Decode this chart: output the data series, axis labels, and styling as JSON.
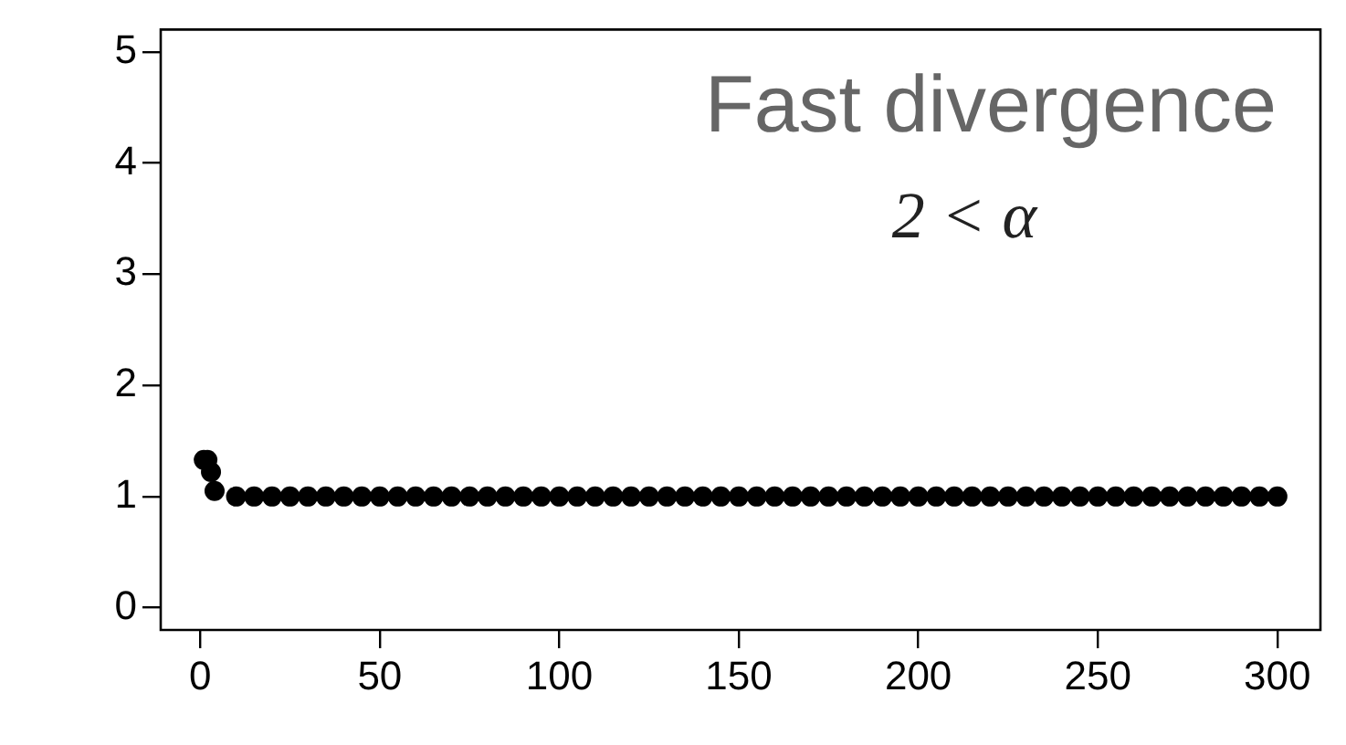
{
  "chart_data": {
    "type": "scatter",
    "title": "Fast divergence",
    "annotations": [
      "2 < α"
    ],
    "x": [
      1,
      2,
      3,
      4,
      10,
      15,
      20,
      25,
      30,
      35,
      40,
      45,
      50,
      55,
      60,
      65,
      70,
      75,
      80,
      85,
      90,
      95,
      100,
      105,
      110,
      115,
      120,
      125,
      130,
      135,
      140,
      145,
      150,
      155,
      160,
      165,
      170,
      175,
      180,
      185,
      190,
      195,
      200,
      205,
      210,
      215,
      220,
      225,
      230,
      235,
      240,
      245,
      250,
      255,
      260,
      265,
      270,
      275,
      280,
      285,
      290,
      295,
      300
    ],
    "series": [
      {
        "color": "#000000",
        "values": [
          1.33,
          1.33,
          1.22,
          1.05,
          1,
          1,
          1,
          1,
          1,
          1,
          1,
          1,
          1,
          1,
          1,
          1,
          1,
          1,
          1,
          1,
          1,
          1,
          1,
          1,
          1,
          1,
          1,
          1,
          1,
          1,
          1,
          1,
          1,
          1,
          1,
          1,
          1,
          1,
          1,
          1,
          1,
          1,
          1,
          1,
          1,
          1,
          1,
          1,
          1,
          1,
          1,
          1,
          1,
          1,
          1,
          1,
          1,
          1,
          1,
          1,
          1,
          1,
          1
        ]
      }
    ],
    "xlim": [
      -11,
      312
    ],
    "ylim": [
      -0.2,
      5.2
    ],
    "xticks": [
      0,
      50,
      100,
      150,
      200,
      250,
      300
    ],
    "yticks": [
      0,
      1,
      2,
      3,
      4,
      5
    ],
    "grid": false,
    "legend": false,
    "marker": "circle"
  }
}
